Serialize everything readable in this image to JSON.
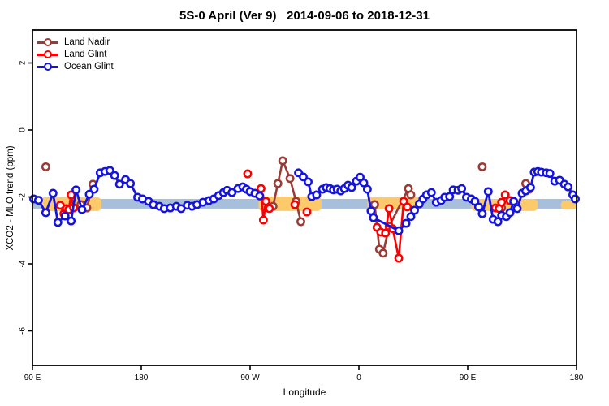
{
  "title": "5S-0 April (Ver 9)   2014-09-06 to 2018-12-31",
  "axes": {
    "x": {
      "label": "Longitude",
      "ticks": [
        {
          "pos": 0,
          "label": "90 E"
        },
        {
          "pos": 90,
          "label": "180"
        },
        {
          "pos": 180,
          "label": "90 W"
        },
        {
          "pos": 270,
          "label": "0"
        },
        {
          "pos": 360,
          "label": "90 E"
        },
        {
          "pos": 450,
          "label": "180"
        }
      ]
    },
    "y": {
      "label": "XCO2 - MLO trend (ppm)",
      "ticks": [
        {
          "pos": 2,
          "label": "2"
        },
        {
          "pos": 0,
          "label": "0"
        },
        {
          "pos": -2,
          "label": "-2"
        },
        {
          "pos": -4,
          "label": "-4"
        },
        {
          "pos": -6,
          "label": "-6"
        }
      ]
    }
  },
  "legend": [
    {
      "label": "Land Nadir",
      "color": "#9c3a36"
    },
    {
      "label": "Land Glint",
      "color": "#fa0000"
    },
    {
      "label": "Ocean Glint",
      "color": "#1414dc"
    }
  ],
  "chart_data": {
    "type": "line",
    "title": "5S-0 April (Ver 9)   2014-09-06 to 2018-12-31",
    "xlabel": "Longitude",
    "ylabel": "XCO2 - MLO trend (ppm)",
    "x_axis_note": "x is degrees eastward along a wrapped longitude axis: 0=90E, 90=180, 180=90W, 270=0, 360=90E, 450=180",
    "xlim": [
      0,
      450
    ],
    "ylim": [
      -7.0,
      3.0
    ],
    "grid": false,
    "legend_position": "top-left",
    "band": {
      "top": -2.06,
      "bottom": -2.35,
      "color": "#a8bfdc"
    },
    "density_blobs": {
      "color": "#fcc96b",
      "regions": [
        {
          "t0": 7,
          "t1": 57,
          "top": -2.01,
          "bottom": -2.42
        },
        {
          "t0": 132,
          "t1": 141,
          "top": -2.16,
          "bottom": -2.3
        },
        {
          "t0": 187,
          "t1": 239,
          "top": -1.99,
          "bottom": -2.42
        },
        {
          "t0": 277,
          "t1": 322,
          "top": -2.01,
          "bottom": -2.38
        },
        {
          "t0": 363,
          "t1": 418,
          "top": -2.06,
          "bottom": -2.42
        },
        {
          "t0": 437,
          "t1": 450,
          "top": -2.11,
          "bottom": -2.38
        }
      ]
    },
    "series": [
      {
        "name": "Land Nadir",
        "color": "#9c3a36",
        "segments": [
          [
            [
              11,
              -1.1
            ]
          ],
          [
            [
              40,
              -2.23
            ],
            [
              45,
              -2.33
            ],
            [
              50,
              -1.62
            ]
          ],
          [
            [
              195,
              -2.33
            ],
            [
              199,
              -2.28
            ],
            [
              203,
              -1.6
            ],
            [
              207,
              -0.92
            ],
            [
              213,
              -1.45
            ],
            [
              218,
              -2.13
            ],
            [
              222,
              -2.74
            ]
          ],
          [
            [
              283,
              -2.23
            ],
            [
              287,
              -3.56
            ],
            [
              290,
              -3.68
            ],
            [
              295,
              -2.88
            ],
            [
              311,
              -1.75
            ],
            [
              313,
              -1.94
            ]
          ],
          [
            [
              372,
              -1.1
            ]
          ],
          [
            [
              388,
              -2.33
            ]
          ],
          [
            [
              408,
              -1.6
            ],
            [
              411,
              -1.77
            ]
          ]
        ]
      },
      {
        "name": "Land Glint",
        "color": "#fa0000",
        "segments": [
          [
            [
              23,
              -2.25
            ],
            [
              26,
              -2.5
            ],
            [
              28,
              -2.35
            ],
            [
              30,
              -2.38
            ],
            [
              32,
              -1.94
            ],
            [
              34,
              -2.33
            ]
          ],
          [
            [
              178,
              -1.31
            ]
          ],
          [
            [
              189,
              -1.75
            ],
            [
              191,
              -2.69
            ],
            [
              193,
              -2.13
            ],
            [
              196,
              -2.35
            ]
          ],
          [
            [
              217,
              -2.23
            ]
          ],
          [
            [
              227,
              -2.45
            ]
          ],
          [
            [
              285,
              -2.91
            ],
            [
              288,
              -3.05
            ],
            [
              292,
              -3.08
            ],
            [
              295,
              -2.35
            ],
            [
              298,
              -2.95
            ],
            [
              303,
              -3.83
            ],
            [
              307,
              -2.13
            ],
            [
              310,
              -2.3
            ]
          ],
          [
            [
              383,
              -2.33
            ],
            [
              386,
              -2.35
            ],
            [
              388,
              -2.16
            ],
            [
              391,
              -1.94
            ],
            [
              395,
              -2.11
            ]
          ]
        ]
      },
      {
        "name": "Ocean Glint",
        "color": "#1414dc",
        "segments": [
          [
            [
              1,
              -2.06
            ],
            [
              5,
              -2.1
            ],
            [
              11,
              -2.47
            ],
            [
              17,
              -1.89
            ],
            [
              21,
              -2.76
            ],
            [
              27,
              -2.57
            ],
            [
              32,
              -2.72
            ],
            [
              36,
              -1.79
            ],
            [
              41,
              -2.38
            ],
            [
              47,
              -1.92
            ],
            [
              51,
              -1.77
            ],
            [
              56,
              -1.28
            ],
            [
              60,
              -1.24
            ],
            [
              64,
              -1.21
            ],
            [
              68,
              -1.36
            ],
            [
              72,
              -1.62
            ],
            [
              77,
              -1.48
            ],
            [
              81,
              -1.6
            ],
            [
              87,
              -2.01
            ],
            [
              91,
              -2.06
            ],
            [
              96,
              -2.13
            ],
            [
              100,
              -2.23
            ],
            [
              105,
              -2.28
            ],
            [
              109,
              -2.35
            ],
            [
              114,
              -2.33
            ],
            [
              119,
              -2.28
            ],
            [
              123,
              -2.35
            ],
            [
              128,
              -2.25
            ],
            [
              132,
              -2.28
            ],
            [
              136,
              -2.23
            ],
            [
              141,
              -2.16
            ],
            [
              146,
              -2.11
            ],
            [
              150,
              -2.06
            ],
            [
              154,
              -1.96
            ],
            [
              158,
              -1.87
            ],
            [
              161,
              -1.8
            ],
            [
              165,
              -1.87
            ],
            [
              170,
              -1.75
            ],
            [
              174,
              -1.7
            ],
            [
              177,
              -1.77
            ],
            [
              180,
              -1.84
            ],
            [
              184,
              -1.89
            ],
            [
              188,
              -1.97
            ]
          ],
          [
            [
              220,
              -1.28
            ],
            [
              224,
              -1.4
            ],
            [
              228,
              -1.55
            ],
            [
              231,
              -1.99
            ],
            [
              235,
              -1.94
            ],
            [
              240,
              -1.77
            ],
            [
              243,
              -1.72
            ],
            [
              246,
              -1.75
            ],
            [
              249,
              -1.79
            ],
            [
              252,
              -1.77
            ],
            [
              255,
              -1.82
            ],
            [
              258,
              -1.75
            ],
            [
              261,
              -1.65
            ],
            [
              264,
              -1.72
            ],
            [
              268,
              -1.53
            ],
            [
              271,
              -1.41
            ],
            [
              274,
              -1.58
            ],
            [
              277,
              -1.77
            ],
            [
              280,
              -2.42
            ],
            [
              282,
              -2.62
            ],
            [
              303,
              -3.01
            ],
            [
              309,
              -2.79
            ],
            [
              313,
              -2.59
            ],
            [
              316,
              -2.4
            ],
            [
              320,
              -2.21
            ],
            [
              323,
              -2.06
            ],
            [
              326,
              -1.94
            ],
            [
              330,
              -1.87
            ],
            [
              334,
              -2.16
            ],
            [
              338,
              -2.11
            ],
            [
              341,
              -2.01
            ],
            [
              345,
              -1.99
            ],
            [
              348,
              -1.79
            ],
            [
              352,
              -1.8
            ],
            [
              355,
              -1.75
            ],
            [
              359,
              -2.01
            ],
            [
              363,
              -2.06
            ],
            [
              366,
              -2.13
            ],
            [
              369,
              -2.3
            ],
            [
              372,
              -2.5
            ],
            [
              377,
              -1.84
            ],
            [
              381,
              -2.67
            ],
            [
              385,
              -2.74
            ],
            [
              388,
              -2.55
            ],
            [
              392,
              -2.59
            ],
            [
              395,
              -2.47
            ],
            [
              398,
              -2.13
            ],
            [
              401,
              -2.35
            ],
            [
              405,
              -1.89
            ],
            [
              408,
              -1.82
            ],
            [
              412,
              -1.72
            ],
            [
              415,
              -1.26
            ],
            [
              418,
              -1.24
            ],
            [
              421,
              -1.26
            ],
            [
              425,
              -1.28
            ],
            [
              428,
              -1.3
            ],
            [
              432,
              -1.53
            ],
            [
              436,
              -1.5
            ],
            [
              440,
              -1.62
            ],
            [
              443,
              -1.7
            ],
            [
              447,
              -1.94
            ],
            [
              449,
              -2.06
            ]
          ]
        ]
      }
    ]
  }
}
